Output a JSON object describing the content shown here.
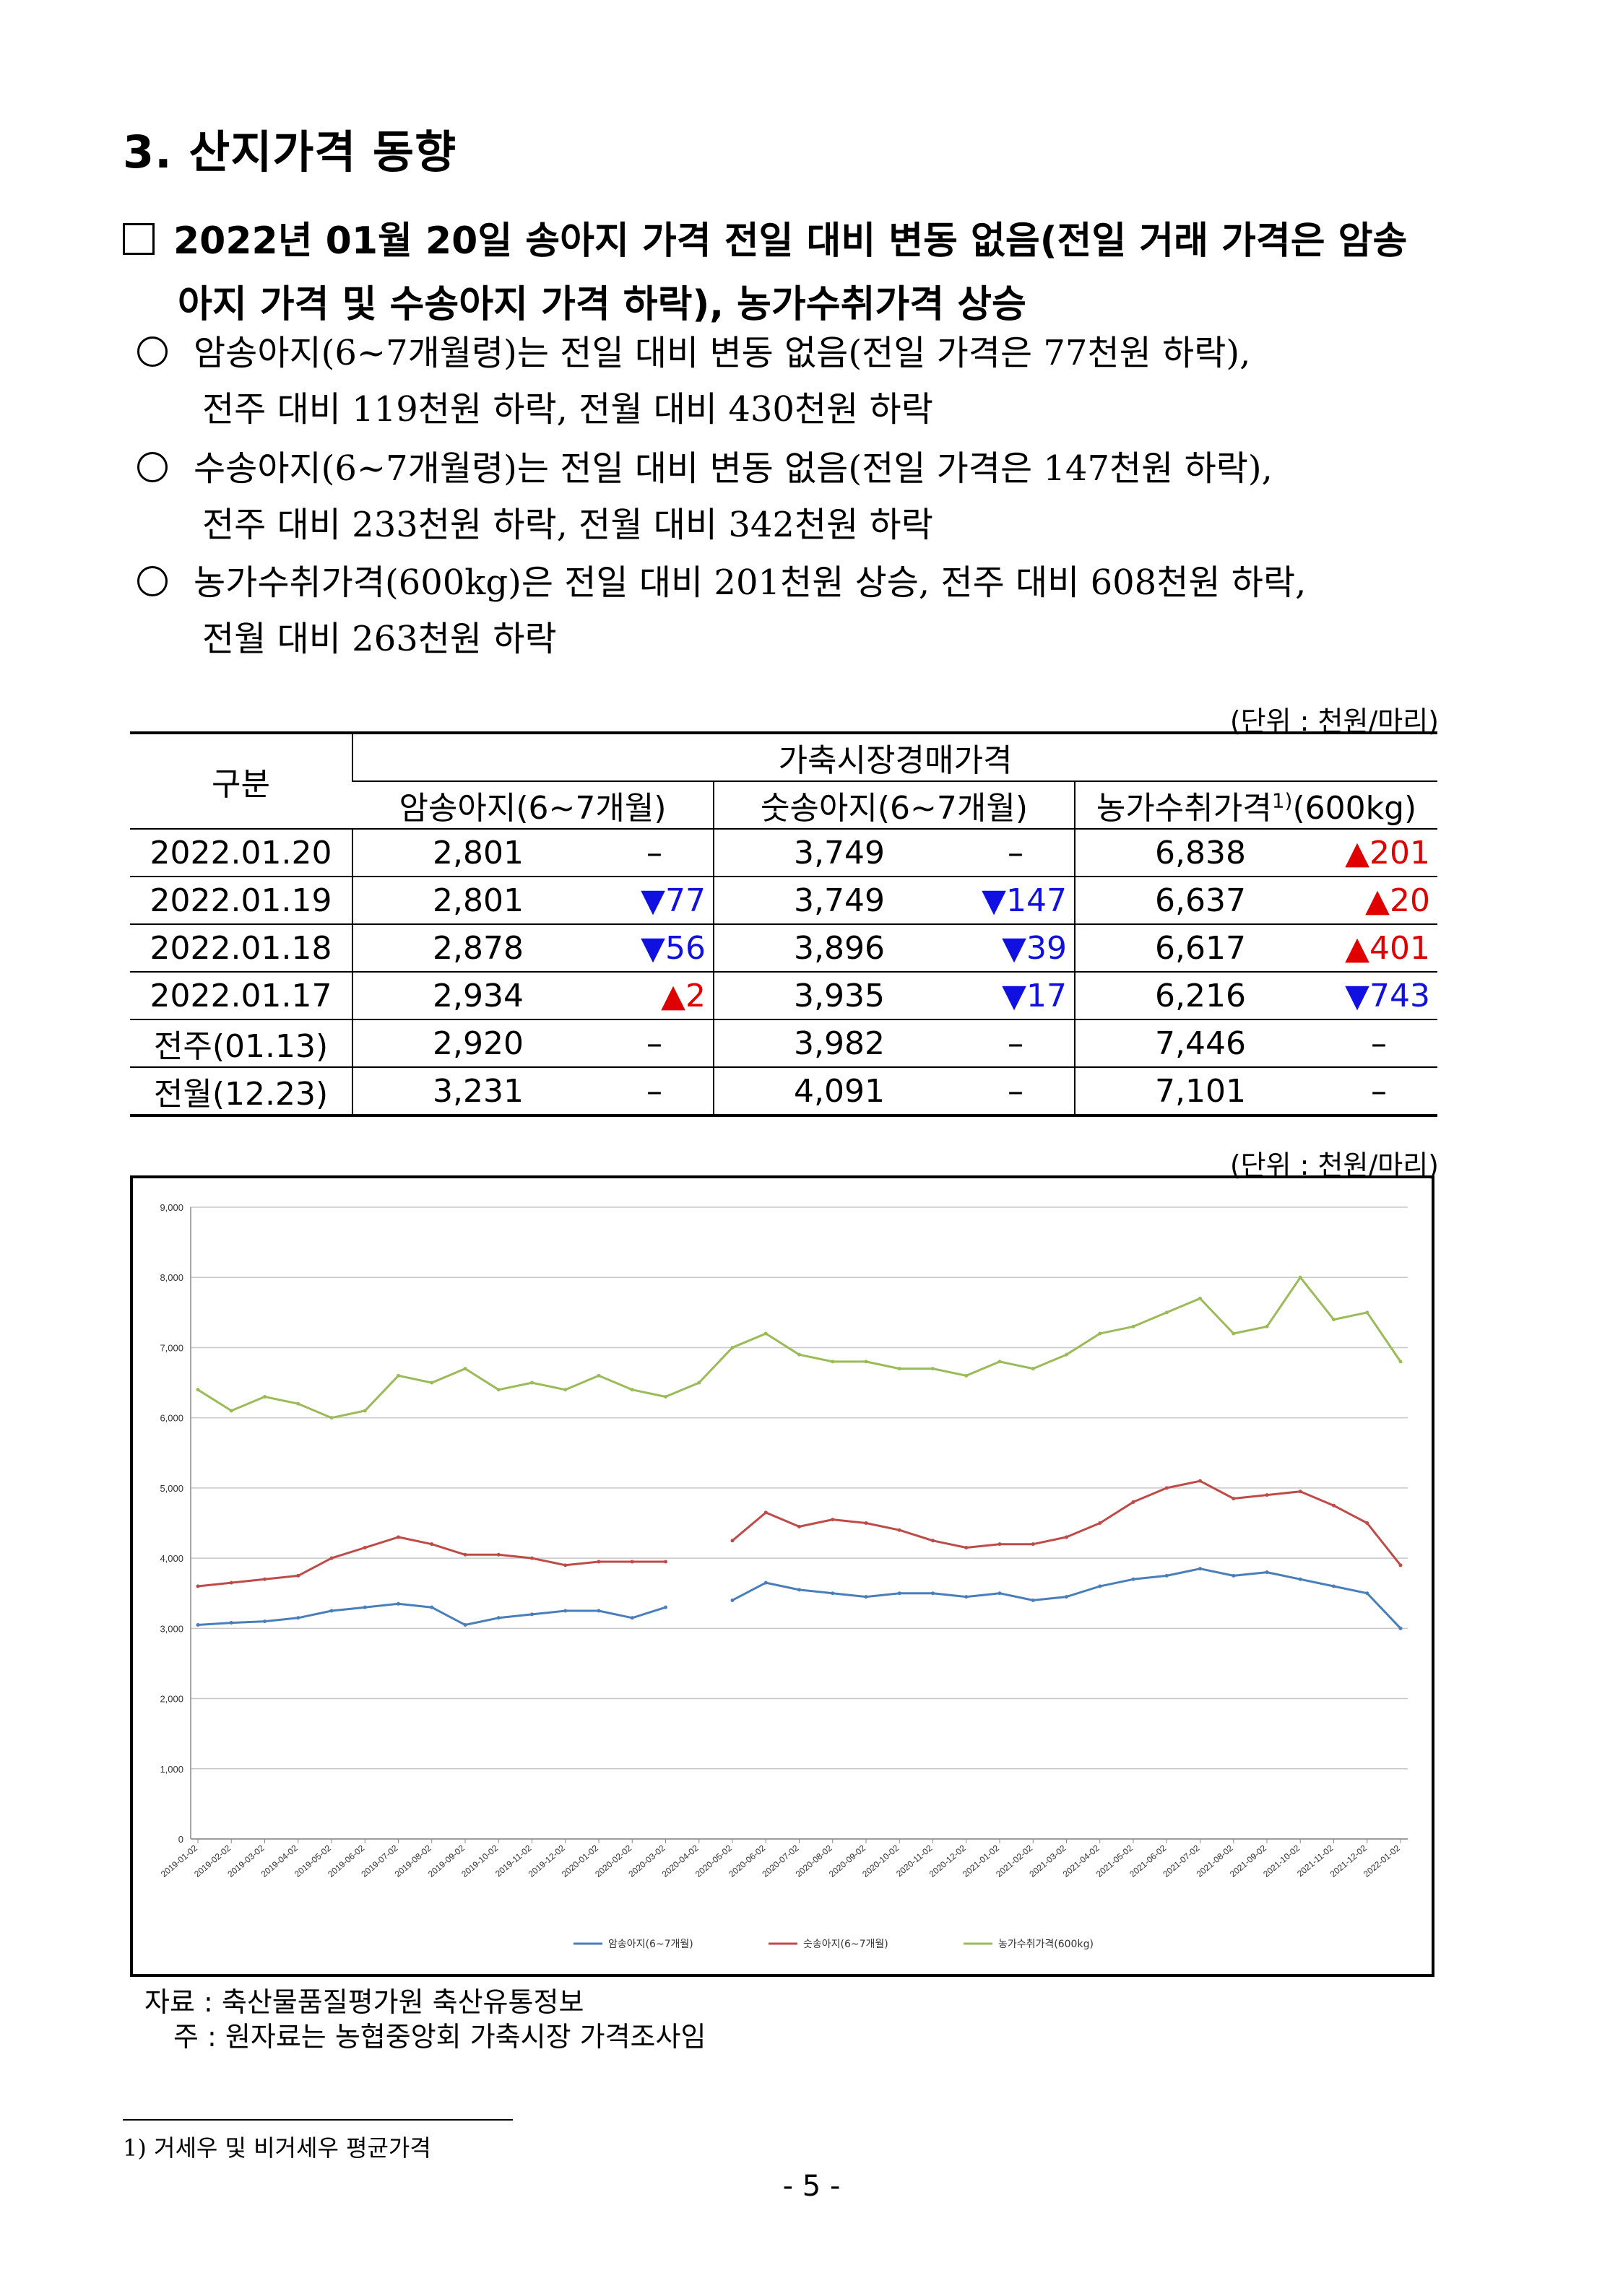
{
  "heading": "3. 산지가격 동향",
  "summary": {
    "line1": "2022년 01월 20일 송아지 가격 전일 대비 변동 없음(전일 거래 가격은 암송",
    "line2": "아지 가격 및 수송아지 가격 하락), 농가수취가격 상승"
  },
  "bullets": [
    {
      "line1": "암송아지(6~7개월령)는 전일 대비 변동 없음(전일 가격은 77천원 하락),",
      "line2": "전주 대비 119천원 하락, 전월 대비 430천원 하락"
    },
    {
      "line1": "수송아지(6~7개월령)는 전일 대비 변동 없음(전일 가격은 147천원 하락),",
      "line2": "전주 대비 233천원 하락, 전월 대비 342천원 하락"
    },
    {
      "line1": "농가수취가격(600kg)은 전일 대비 201천원 상승, 전주 대비 608천원 하락,",
      "line2": "전월 대비 263천원 하락"
    }
  ],
  "table_unit": "(단위 : 천원/마리)",
  "chart_unit": "(단위 : 천원/마리)",
  "table": {
    "col_group": "구분",
    "market_header": "가축시장경매가격",
    "col_female": "암송아지(6~7개월)",
    "col_male": "숫송아지(6~7개월)",
    "col_farm": "농가수취가격",
    "col_farm_sup": "1)",
    "col_farm_tail": "(600kg)",
    "rows": [
      {
        "label": "2022.01.20",
        "f": "2,801",
        "fc": "–",
        "fd": "",
        "m": "3,749",
        "mc": "–",
        "md": "",
        "p": "6,838",
        "pc": "▲201",
        "pd": "up"
      },
      {
        "label": "2022.01.19",
        "f": "2,801",
        "fc": "▼77",
        "fd": "dn",
        "m": "3,749",
        "mc": "▼147",
        "md": "dn",
        "p": "6,637",
        "pc": "▲20",
        "pd": "up"
      },
      {
        "label": "2022.01.18",
        "f": "2,878",
        "fc": "▼56",
        "fd": "dn",
        "m": "3,896",
        "mc": "▼39",
        "md": "dn",
        "p": "6,617",
        "pc": "▲401",
        "pd": "up"
      },
      {
        "label": "2022.01.17",
        "f": "2,934",
        "fc": "▲2",
        "fd": "up",
        "m": "3,935",
        "mc": "▼17",
        "md": "dn",
        "p": "6,216",
        "pc": "▼743",
        "pd": "dn"
      },
      {
        "label": "전주(01.13)",
        "f": "2,920",
        "fc": "–",
        "fd": "",
        "m": "3,982",
        "mc": "–",
        "md": "",
        "p": "7,446",
        "pc": "–",
        "pd": ""
      },
      {
        "label": "전월(12.23)",
        "f": "3,231",
        "fc": "–",
        "fd": "",
        "m": "4,091",
        "mc": "–",
        "md": "",
        "p": "7,101",
        "pc": "–",
        "pd": ""
      }
    ]
  },
  "chart_data": {
    "type": "line",
    "ylim": [
      0,
      9000
    ],
    "yticks": [
      "0",
      "1,000",
      "2,000",
      "3,000",
      "4,000",
      "5,000",
      "6,000",
      "7,000",
      "8,000",
      "9,000"
    ],
    "grid": true,
    "legend": "bottom",
    "x": [
      "2019-01-02",
      "2019-02-02",
      "2019-03-02",
      "2019-04-02",
      "2019-05-02",
      "2019-06-02",
      "2019-07-02",
      "2019-08-02",
      "2019-09-02",
      "2019-10-02",
      "2019-11-02",
      "2019-12-02",
      "2020-01-02",
      "2020-02-02",
      "2020-03-02",
      "2020-04-02",
      "2020-05-02",
      "2020-06-02",
      "2020-07-02",
      "2020-08-02",
      "2020-09-02",
      "2020-10-02",
      "2020-11-02",
      "2020-12-02",
      "2021-01-02",
      "2021-02-02",
      "2021-03-02",
      "2021-04-02",
      "2021-05-02",
      "2021-06-02",
      "2021-07-02",
      "2021-08-02",
      "2021-09-02",
      "2021-10-02",
      "2021-11-02",
      "2021-12-02",
      "2022-01-02"
    ],
    "series": [
      {
        "name": "암송아지(6~7개월)",
        "color": "#4a7ebb",
        "values": [
          3050,
          3080,
          3100,
          3150,
          3250,
          3300,
          3350,
          3300,
          3050,
          3150,
          3200,
          3250,
          3250,
          3150,
          3300,
          null,
          3400,
          3650,
          3550,
          3500,
          3450,
          3500,
          3500,
          3450,
          3500,
          3400,
          3450,
          3600,
          3700,
          3750,
          3850,
          3750,
          3800,
          3700,
          3600,
          3500,
          3000
        ]
      },
      {
        "name": "숫송아지(6~7개월)",
        "color": "#be4b48",
        "values": [
          3600,
          3650,
          3700,
          3750,
          4000,
          4150,
          4300,
          4200,
          4050,
          4050,
          4000,
          3900,
          3950,
          3950,
          3950,
          null,
          4250,
          4650,
          4450,
          4550,
          4500,
          4400,
          4250,
          4150,
          4200,
          4200,
          4300,
          4500,
          4800,
          5000,
          5100,
          4850,
          4900,
          4950,
          4750,
          4500,
          3900
        ]
      },
      {
        "name": "농가수취가격(600kg)",
        "color": "#9bbb59",
        "values": [
          6400,
          6100,
          6300,
          6200,
          6000,
          6100,
          6600,
          6500,
          6700,
          6400,
          6500,
          6400,
          6600,
          6400,
          6300,
          6500,
          7000,
          7200,
          6900,
          6800,
          6800,
          6700,
          6700,
          6600,
          6800,
          6700,
          6900,
          7200,
          7300,
          7500,
          7700,
          7200,
          7300,
          8000,
          7400,
          7500,
          6800
        ]
      }
    ]
  },
  "source": "자료 : 축산물품질평가원 축산유통정보",
  "note": "주 : 원자료는 농협중앙회 가축시장 가격조사임",
  "footnote": "1) 거세우 및 비거세우 평균가격",
  "page_number": "- 5 -"
}
